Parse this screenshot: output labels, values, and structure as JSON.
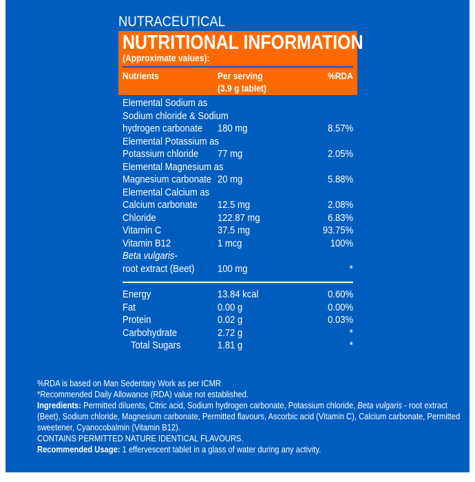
{
  "brand": "NUTRACEUTICAL",
  "title": "NUTRITIONAL INFORMATION",
  "subtitle": "(Approximate values):",
  "headers": {
    "nutrients": "Nutrients",
    "per_serving": "Per serving",
    "per_serving_2": "(3.9 g tablet)",
    "rda": "%RDA"
  },
  "rows": [
    {
      "lines": [
        "Elemental Sodium as",
        "Sodium chloride & Sodium",
        "hydrogen carbonate"
      ],
      "value": "180 mg",
      "rda": "8.57%"
    },
    {
      "lines": [
        "Elemental Potassium as",
        "Potassium chloride"
      ],
      "value": "77 mg",
      "rda": "2.05%"
    },
    {
      "lines": [
        "Elemental Magnesium as",
        "Magnesium carbonate"
      ],
      "value": "20 mg",
      "rda": "5.88%"
    },
    {
      "lines": [
        "Elemental Calcium as",
        "Calcium carbonate"
      ],
      "value": "12.5 mg",
      "rda": "2.08%"
    },
    {
      "lines": [
        "Chloride"
      ],
      "value": "122.87 mg",
      "rda": "6.83%"
    },
    {
      "lines": [
        "Vitamin C"
      ],
      "value": "37.5 mg",
      "rda": "93.75%"
    },
    {
      "lines": [
        "Vitamin B12"
      ],
      "value": "1 mcg",
      "rda": "100%"
    },
    {
      "lines": [
        "Beta vulgaris-",
        "root extract (Beet)"
      ],
      "value": "100 mg",
      "rda": "*",
      "italic_first": true
    }
  ],
  "rows2": [
    {
      "lines": [
        "Energy"
      ],
      "value": "13.84 kcal",
      "rda": "0.60%"
    },
    {
      "lines": [
        "Fat"
      ],
      "value": "0.00 g",
      "rda": "0.00%"
    },
    {
      "lines": [
        "Protein"
      ],
      "value": "0.02 g",
      "rda": "0.03%"
    },
    {
      "lines": [
        "Carbohydrate"
      ],
      "value": "2.72 g",
      "rda": "*"
    },
    {
      "lines": [
        "Total Sugars"
      ],
      "value": "1.81 g",
      "rda": "*",
      "indent": true
    }
  ],
  "footer": {
    "note1": "%RDA is based on Man Sedentary Work as per ICMR",
    "note2": "*Recommended Daily Allowance (RDA) value not established.",
    "ing_label": "Ingredients:",
    "ing_a": " Permitted diluents, Citric acid, Sodium hydrogen carbonate, Potassium chloride, ",
    "ing_italic": "Beta vulgaris",
    "ing_b": " - root extract",
    "ing_line2": "(Beet), Sodium chloride, Magnesium carbonate, Permitted flavours, Ascorbic acid (Vitamin C), Calcium carbonate, Permitted",
    "ing_line3": "sweetener, Cyanocobalmin (Vitamin B12).",
    "contains": "CONTAINS PERMITTED NATURE IDENTICAL FLAVOURS.",
    "usage_label": "Recommended Usage:",
    "usage": " 1 effervescent tablet in a glass of water during any activity."
  },
  "colors": {
    "panel": "#005DBE",
    "orange": "#FF6A00"
  }
}
